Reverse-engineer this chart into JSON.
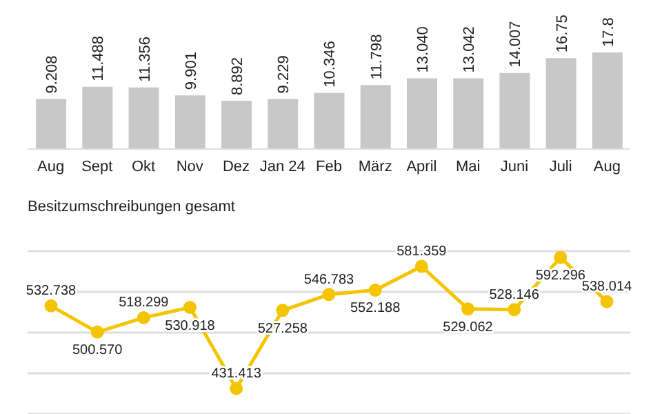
{
  "chart_data": [
    {
      "type": "bar",
      "categories": [
        "Aug",
        "Sept",
        "Okt",
        "Nov",
        "Dez",
        "Jan 24",
        "Feb",
        "März",
        "April",
        "Mai",
        "Juni",
        "Juli",
        "Aug"
      ],
      "values": [
        9.208,
        11.488,
        11.356,
        9.901,
        8.892,
        9.229,
        10.346,
        11.798,
        13.04,
        13.042,
        14.007,
        16.75,
        17.8
      ],
      "value_labels": [
        "9.208",
        "11.488",
        "11.356",
        "9.901",
        "8.892",
        "9.229",
        "10.346",
        "11.798",
        "13.040",
        "13.042",
        "14.007",
        "16.75",
        "17.8"
      ],
      "color": "#c8c8c8",
      "tick_labels": "x"
    },
    {
      "type": "line",
      "title": "Besitzumschreibungen gesamt",
      "categories": [
        null,
        null,
        null,
        null,
        null,
        null,
        null,
        null,
        null,
        null,
        null,
        null,
        null
      ],
      "values": [
        532.738,
        500.57,
        518.299,
        530.918,
        431.413,
        527.258,
        546.783,
        552.188,
        581.359,
        529.062,
        528.146,
        592.296,
        538.014
      ],
      "value_labels": [
        "532.738",
        "500.570",
        "518.299",
        "530.918",
        "431.413",
        "527.258",
        "546.783",
        "552.188",
        "581.359",
        "529.062",
        "528.146",
        "592.296",
        "538.014"
      ],
      "color": "#f5c400",
      "marker": "circle",
      "grid": "y",
      "tick_labels": false
    }
  ]
}
